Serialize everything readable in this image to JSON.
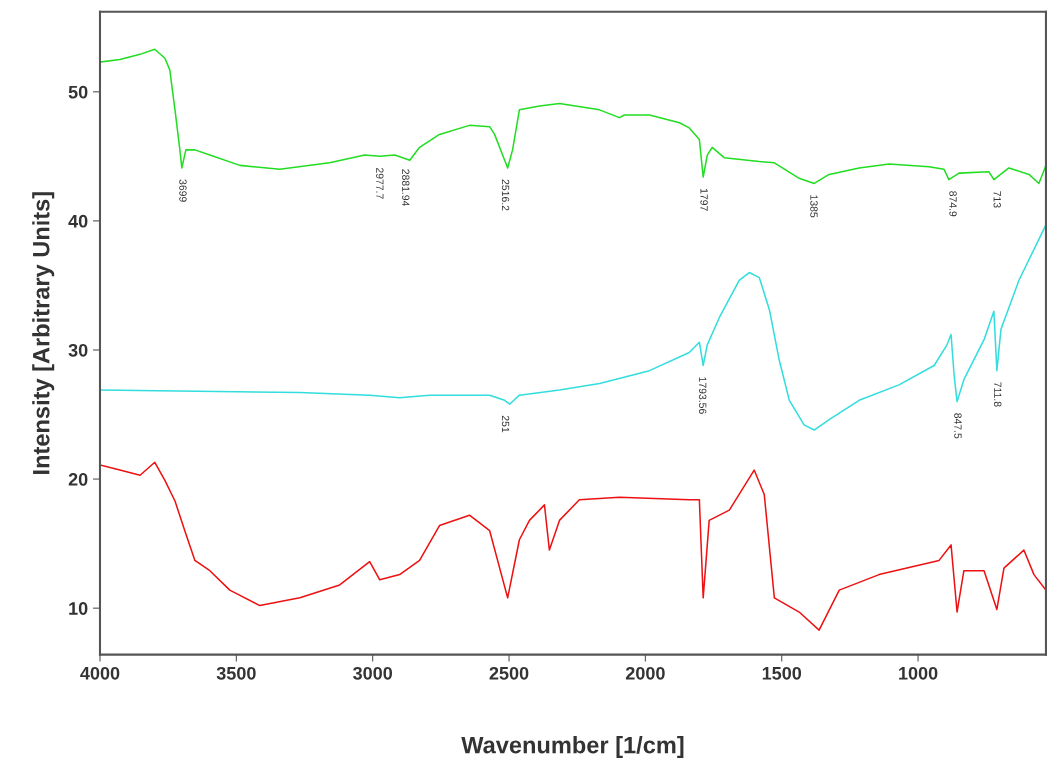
{
  "chart_data": {
    "type": "line",
    "xlabel": "Wavenumber [1/cm]",
    "ylabel": "Intensity [Arbitrary Units]",
    "xlim": [
      4000,
      531
    ],
    "ylim": [
      6.4,
      56.2
    ],
    "xticks": [
      4000,
      3500,
      3000,
      2500,
      2000,
      1500,
      1000
    ],
    "yticks": [
      10,
      20,
      30,
      40,
      50
    ],
    "grid": false,
    "legend": false,
    "marker": "none",
    "line_style": "solid",
    "series": [
      {
        "color": "#22dd22",
        "x": [
          4000,
          3927,
          3853,
          3799,
          3762,
          3744,
          3725,
          3707,
          3700,
          3685,
          3652,
          3597,
          3487,
          3341,
          3158,
          3029,
          2974,
          2919,
          2864,
          2828,
          2755,
          2645,
          2571,
          2553,
          2516,
          2505,
          2487,
          2462,
          2388,
          2315,
          2168,
          2095,
          2077,
          1985,
          1875,
          1839,
          1802,
          1788,
          1773,
          1755,
          1711,
          1582,
          1527,
          1436,
          1381,
          1326,
          1216,
          1106,
          960,
          905,
          887,
          850,
          740,
          722,
          667,
          593,
          557,
          531
        ],
        "values": [
          52.3,
          52.5,
          52.9,
          53.3,
          52.6,
          51.7,
          48.6,
          45.5,
          44.1,
          45.5,
          45.5,
          45.1,
          44.3,
          44.0,
          44.5,
          45.1,
          45.0,
          45.1,
          44.7,
          45.7,
          46.7,
          47.4,
          47.3,
          46.7,
          44.7,
          44.1,
          45.5,
          48.6,
          48.9,
          49.1,
          48.6,
          48.0,
          48.2,
          48.2,
          47.6,
          47.2,
          46.3,
          43.4,
          45.1,
          45.7,
          44.9,
          44.6,
          44.5,
          43.3,
          42.9,
          43.6,
          44.1,
          44.4,
          44.2,
          44.0,
          43.2,
          43.7,
          43.8,
          43.2,
          44.1,
          43.6,
          42.9,
          44.3
        ]
      },
      {
        "color": "#33dddd",
        "x": [
          4000,
          3267,
          3011,
          2901,
          2791,
          2571,
          2516,
          2498,
          2462,
          2315,
          2168,
          1985,
          1839,
          1802,
          1788,
          1773,
          1729,
          1656,
          1619,
          1582,
          1545,
          1509,
          1472,
          1418,
          1381,
          1326,
          1216,
          1070,
          941,
          894,
          879,
          868,
          857,
          832,
          758,
          722,
          711,
          696,
          630,
          531
        ],
        "values": [
          26.9,
          26.7,
          26.5,
          26.3,
          26.5,
          26.5,
          26.1,
          25.8,
          26.5,
          26.9,
          27.4,
          28.4,
          29.8,
          30.6,
          28.8,
          30.4,
          32.5,
          35.4,
          36.0,
          35.6,
          33.1,
          29.2,
          26.1,
          24.2,
          23.8,
          24.6,
          26.1,
          27.3,
          28.8,
          30.4,
          31.2,
          28.1,
          26.0,
          27.7,
          30.8,
          33.0,
          28.4,
          31.6,
          35.4,
          39.7
        ]
      },
      {
        "color": "#ee1111",
        "x": [
          4000,
          3927,
          3853,
          3799,
          3762,
          3725,
          3689,
          3652,
          3597,
          3524,
          3414,
          3267,
          3121,
          3011,
          2974,
          2901,
          2828,
          2755,
          2645,
          2571,
          2505,
          2462,
          2425,
          2370,
          2352,
          2315,
          2242,
          2095,
          1839,
          1802,
          1788,
          1766,
          1692,
          1601,
          1564,
          1527,
          1436,
          1363,
          1289,
          1143,
          923,
          879,
          857,
          832,
          758,
          711,
          685,
          612,
          575,
          531
        ],
        "values": [
          21.1,
          20.7,
          20.3,
          21.3,
          19.9,
          18.3,
          16.0,
          13.7,
          12.9,
          11.4,
          10.2,
          10.8,
          11.8,
          13.6,
          12.2,
          12.6,
          13.7,
          16.4,
          17.2,
          16.0,
          10.8,
          15.3,
          16.8,
          18.0,
          14.5,
          16.8,
          18.4,
          18.6,
          18.4,
          18.4,
          10.8,
          16.8,
          17.6,
          20.7,
          18.8,
          10.8,
          9.7,
          8.3,
          11.4,
          12.6,
          13.7,
          14.9,
          9.7,
          12.9,
          12.9,
          9.9,
          13.1,
          14.5,
          12.6,
          11.4
        ]
      }
    ],
    "annotations": [
      {
        "text": "3699",
        "x": 3699,
        "y": 44.1
      },
      {
        "text": "2977.7",
        "x": 2977,
        "y": 45.0
      },
      {
        "text": "2881.94",
        "x": 2882,
        "y": 44.9
      },
      {
        "text": "2516.2",
        "x": 2516,
        "y": 44.1
      },
      {
        "text": "1797",
        "x": 1788,
        "y": 43.4
      },
      {
        "text": "1385",
        "x": 1385,
        "y": 42.9
      },
      {
        "text": "874.9",
        "x": 875,
        "y": 43.2
      },
      {
        "text": "713",
        "x": 713,
        "y": 43.2
      },
      {
        "text": "251",
        "x": 2516,
        "y": 25.8
      },
      {
        "text": "1793.56",
        "x": 1793,
        "y": 28.8
      },
      {
        "text": "847.5",
        "x": 857,
        "y": 26.0
      },
      {
        "text": "711.8",
        "x": 711,
        "y": 28.4
      }
    ]
  }
}
